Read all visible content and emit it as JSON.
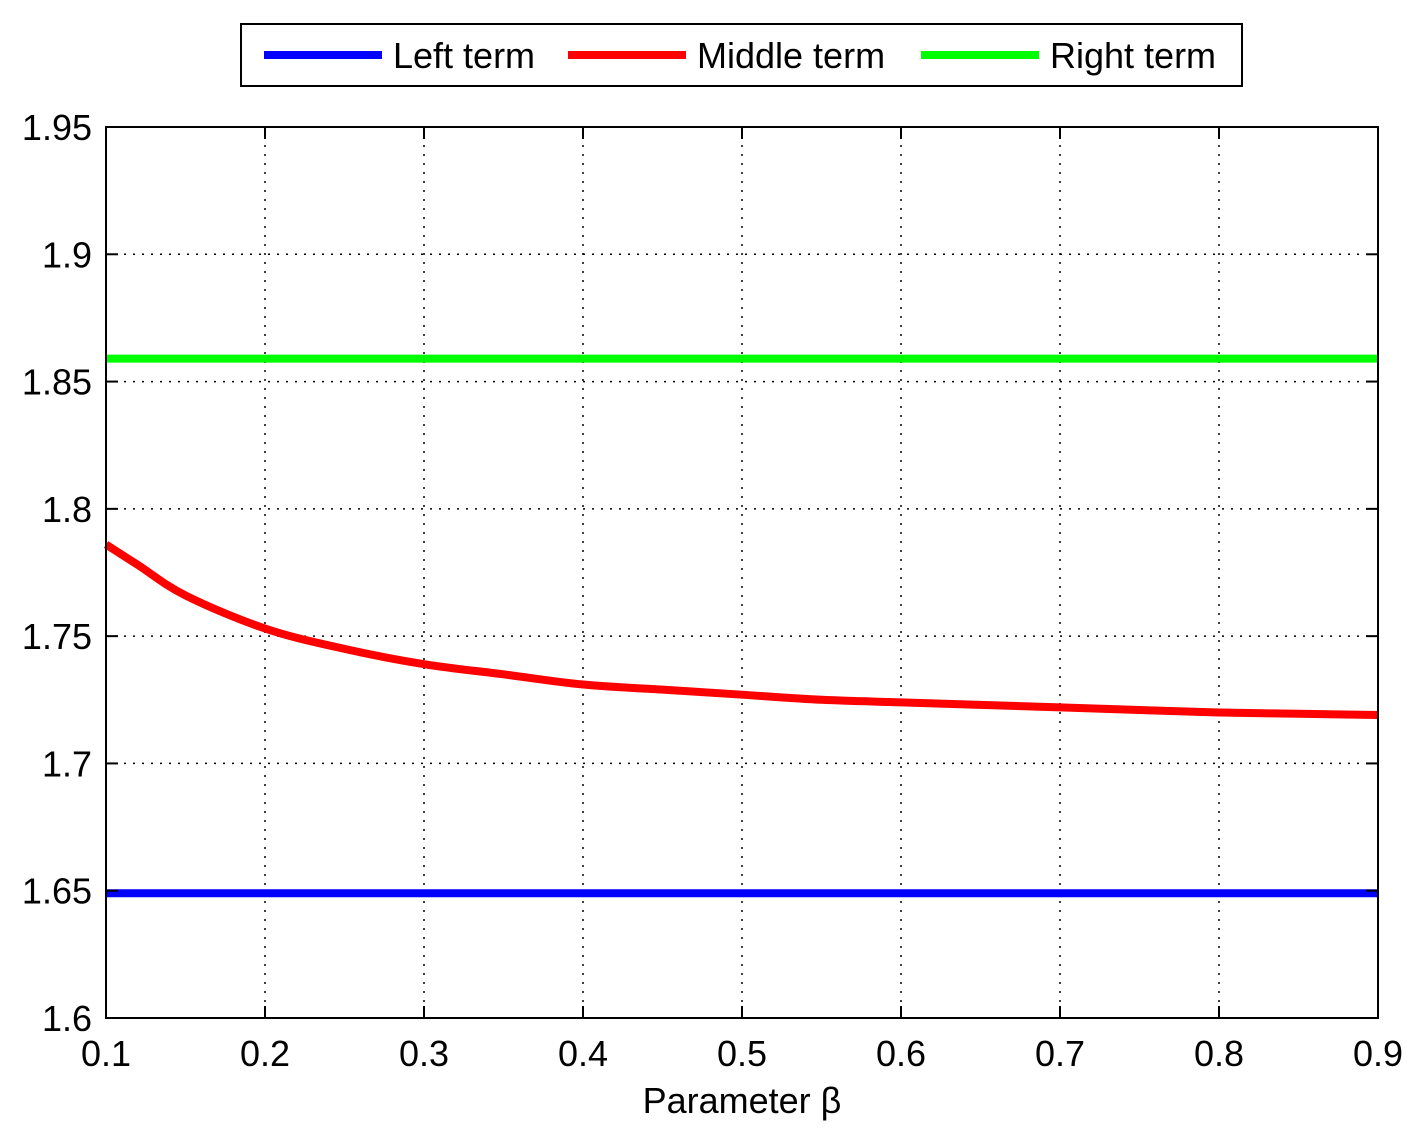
{
  "chart_data": {
    "type": "line",
    "title": "",
    "xlabel": "Parameter β",
    "ylabel": "",
    "xlim": [
      0.1,
      0.9
    ],
    "ylim": [
      1.6,
      1.95
    ],
    "xticks": [
      0.1,
      0.2,
      0.3,
      0.4,
      0.5,
      0.6,
      0.7,
      0.8,
      0.9
    ],
    "yticks": [
      1.6,
      1.65,
      1.7,
      1.75,
      1.8,
      1.85,
      1.9,
      1.95
    ],
    "xtick_labels": [
      "0.1",
      "0.2",
      "0.3",
      "0.4",
      "0.5",
      "0.6",
      "0.7",
      "0.8",
      "0.9"
    ],
    "ytick_labels": [
      "1.6",
      "1.65",
      "1.7",
      "1.75",
      "1.8",
      "1.85",
      "1.9",
      "1.95"
    ],
    "grid": true,
    "legend_position": "top-center",
    "series": [
      {
        "name": "Left term",
        "color": "#0000ff",
        "x": [
          0.1,
          0.9
        ],
        "y": [
          1.649,
          1.649
        ]
      },
      {
        "name": "Middle term",
        "color": "#ff0000",
        "x": [
          0.1,
          0.12,
          0.15,
          0.2,
          0.25,
          0.3,
          0.35,
          0.4,
          0.45,
          0.5,
          0.55,
          0.6,
          0.65,
          0.7,
          0.75,
          0.8,
          0.85,
          0.9
        ],
        "y": [
          1.786,
          1.778,
          1.766,
          1.753,
          1.745,
          1.739,
          1.735,
          1.731,
          1.729,
          1.727,
          1.725,
          1.724,
          1.723,
          1.722,
          1.721,
          1.72,
          1.7195,
          1.719
        ]
      },
      {
        "name": "Right term",
        "color": "#00ff00",
        "x": [
          0.1,
          0.9
        ],
        "y": [
          1.859,
          1.859
        ]
      }
    ]
  }
}
